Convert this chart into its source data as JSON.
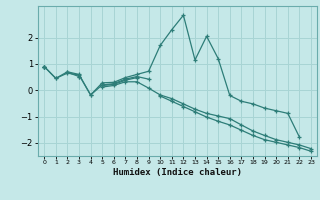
{
  "title": "",
  "xlabel": "Humidex (Indice chaleur)",
  "bg_color": "#c5e8e8",
  "grid_color": "#a8d4d4",
  "line_color": "#2d7d78",
  "spine_color": "#6aacac",
  "xlim": [
    -0.5,
    23.5
  ],
  "ylim": [
    -2.5,
    3.2
  ],
  "yticks": [
    -2,
    -1,
    0,
    1,
    2
  ],
  "xticks": [
    0,
    1,
    2,
    3,
    4,
    5,
    6,
    7,
    8,
    9,
    10,
    11,
    12,
    13,
    14,
    15,
    16,
    17,
    18,
    19,
    20,
    21,
    22,
    23
  ],
  "series": [
    [
      0.9,
      0.45,
      0.7,
      0.6,
      -0.18,
      0.28,
      0.3,
      0.48,
      0.6,
      0.72,
      1.7,
      2.3,
      2.85,
      1.15,
      2.05,
      1.2,
      -0.2,
      -0.42,
      -0.52,
      -0.68,
      -0.78,
      -0.88,
      -1.78,
      null
    ],
    [
      0.9,
      0.45,
      0.65,
      0.58,
      -0.18,
      0.2,
      0.25,
      0.42,
      0.52,
      0.42,
      null,
      null,
      null,
      null,
      null,
      null,
      null,
      null,
      null,
      null,
      null,
      null,
      null,
      null
    ],
    [
      0.9,
      null,
      0.68,
      0.52,
      null,
      0.18,
      0.22,
      0.38,
      0.48,
      null,
      null,
      null,
      null,
      null,
      null,
      null,
      null,
      null,
      null,
      null,
      null,
      null,
      null,
      null
    ],
    [
      0.9,
      null,
      null,
      0.52,
      null,
      0.12,
      0.18,
      0.32,
      0.32,
      0.08,
      -0.18,
      -0.32,
      -0.52,
      -0.72,
      -0.88,
      -0.98,
      -1.08,
      -1.32,
      -1.55,
      -1.72,
      -1.88,
      -1.98,
      -2.08,
      -2.22
    ],
    [
      0.9,
      null,
      null,
      null,
      null,
      null,
      null,
      null,
      null,
      null,
      -0.22,
      -0.42,
      -0.62,
      -0.82,
      -1.02,
      -1.18,
      -1.32,
      -1.52,
      -1.72,
      -1.88,
      -1.98,
      -2.08,
      -2.18,
      -2.32
    ]
  ]
}
